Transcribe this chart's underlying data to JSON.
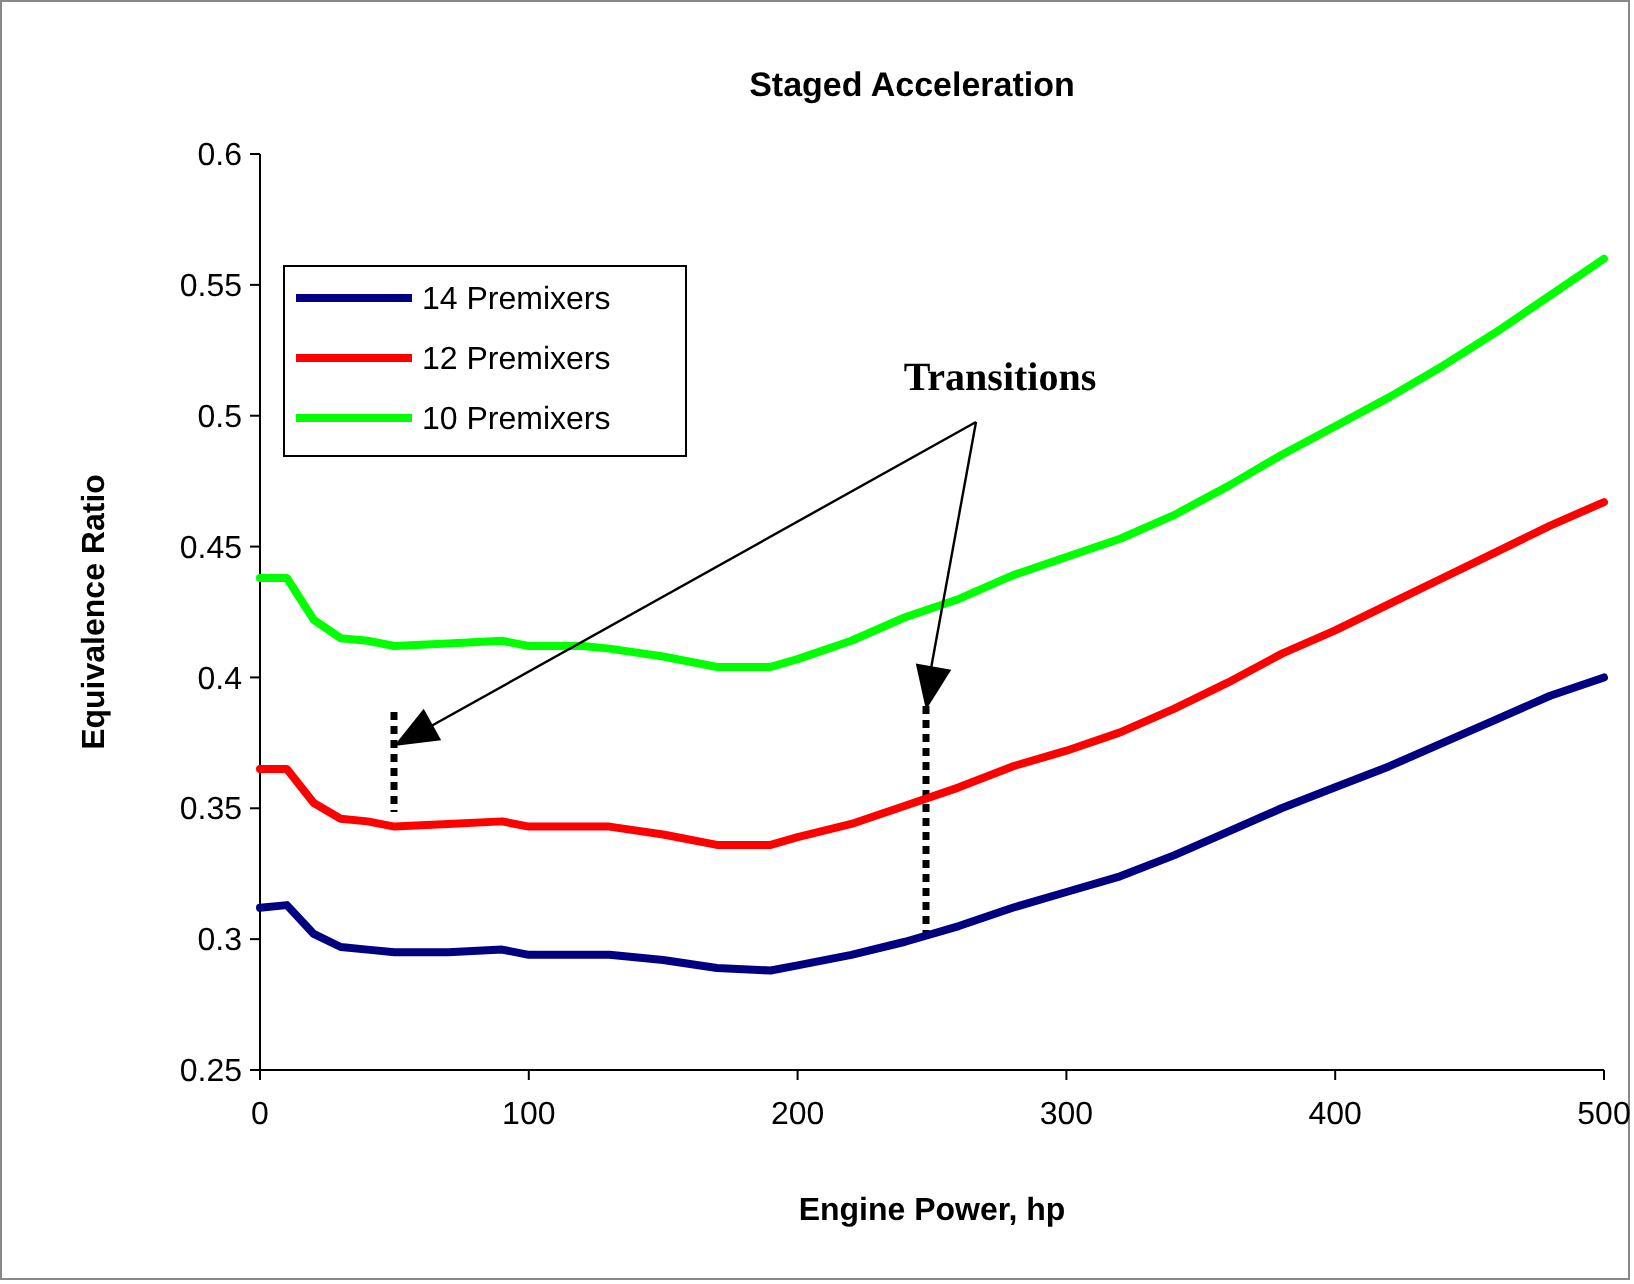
{
  "chart_data": {
    "type": "line",
    "title": "Staged Acceleration",
    "xlabel": "Engine Power, hp",
    "ylabel": "Equivalence Ratio",
    "x": [
      0,
      10,
      20,
      30,
      40,
      50,
      70,
      90,
      100,
      120,
      130,
      150,
      170,
      190,
      200,
      220,
      240,
      260,
      280,
      300,
      320,
      340,
      360,
      380,
      400,
      420,
      440,
      460,
      480,
      500
    ],
    "series": [
      {
        "name": "14 Premixers",
        "color": "#000080",
        "values": [
          0.312,
          0.313,
          0.302,
          0.297,
          0.296,
          0.295,
          0.295,
          0.296,
          0.294,
          0.294,
          0.294,
          0.292,
          0.289,
          0.288,
          0.29,
          0.294,
          0.299,
          0.305,
          0.312,
          0.318,
          0.324,
          0.332,
          0.341,
          0.35,
          0.358,
          0.366,
          0.375,
          0.384,
          0.393,
          0.4
        ]
      },
      {
        "name": "12 Premixers",
        "color": "#ff0000",
        "values": [
          0.365,
          0.365,
          0.352,
          0.346,
          0.345,
          0.343,
          0.344,
          0.345,
          0.343,
          0.343,
          0.343,
          0.34,
          0.336,
          0.336,
          0.339,
          0.344,
          0.351,
          0.358,
          0.366,
          0.372,
          0.379,
          0.388,
          0.398,
          0.409,
          0.418,
          0.428,
          0.438,
          0.448,
          0.458,
          0.467
        ]
      },
      {
        "name": "10 Premixers",
        "color": "#00ff00",
        "values": [
          0.438,
          0.438,
          0.422,
          0.415,
          0.414,
          0.412,
          0.413,
          0.414,
          0.412,
          0.412,
          0.411,
          0.408,
          0.404,
          0.404,
          0.407,
          0.414,
          0.423,
          0.43,
          0.439,
          0.446,
          0.453,
          0.462,
          0.473,
          0.485,
          0.496,
          0.507,
          0.519,
          0.532,
          0.546,
          0.56
        ]
      }
    ],
    "xlim": [
      0,
      500
    ],
    "xticks": [
      0,
      100,
      200,
      300,
      400,
      500
    ],
    "ylim": [
      0.25,
      0.6
    ],
    "yticks": [
      0.25,
      0.3,
      0.35,
      0.4,
      0.45,
      0.5,
      0.55,
      0.6
    ],
    "annotations": [
      "Transitions"
    ],
    "legend": "top left",
    "grid": false,
    "marker": "none",
    "line_style": "solid"
  }
}
